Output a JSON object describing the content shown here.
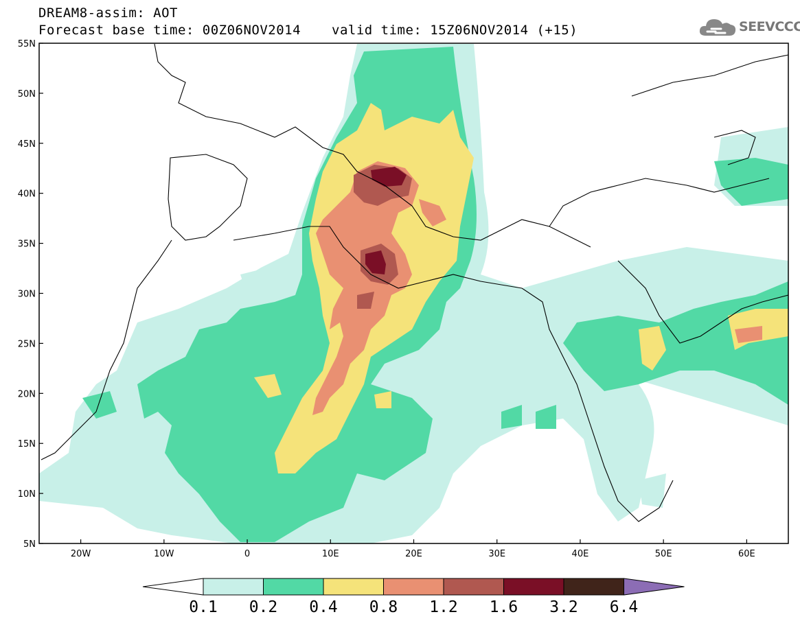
{
  "title": {
    "line1": "DREAM8-assim: AOT",
    "line2": "Forecast base time: 00Z06NOV2014",
    "valid": "valid time: 15Z06NOV2014 (+15)"
  },
  "logo": {
    "text": "SEEVCCC",
    "icon": "cloud-icon"
  },
  "map": {
    "lon_range": [
      -25,
      65
    ],
    "lat_range": [
      5,
      55
    ],
    "lat_labels": [
      "55N",
      "50N",
      "45N",
      "40N",
      "35N",
      "30N",
      "25N",
      "20N",
      "15N",
      "10N",
      "5N"
    ],
    "lon_labels": [
      "20W",
      "10W",
      "0",
      "10E",
      "20E",
      "30E",
      "40E",
      "50E",
      "60E"
    ]
  },
  "colorbar": {
    "colors": [
      "#ffffff",
      "#c8f0e8",
      "#52d9a5",
      "#f5e37a",
      "#e99072",
      "#b05850",
      "#7a0f26",
      "#40241a",
      "#8c6db5"
    ],
    "ticks": [
      "0.1",
      "0.2",
      "0.4",
      "0.8",
      "1.2",
      "1.6",
      "3.2",
      "6.4"
    ]
  }
}
